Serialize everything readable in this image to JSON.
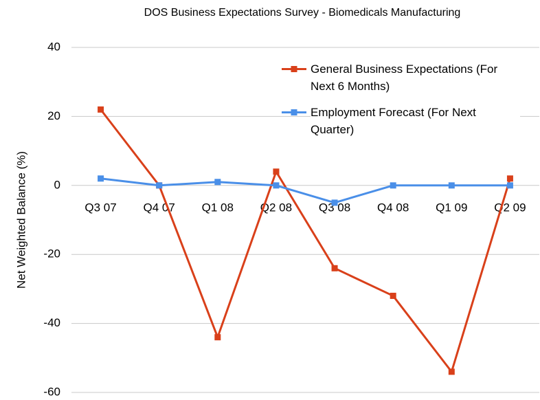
{
  "chart_data": {
    "type": "line",
    "title": "DOS Business Expectations Survey - Biomedicals Manufacturing",
    "y_label": "Net Weighted Balance (%)",
    "categories": [
      "Q3 07",
      "Q4 07",
      "Q1 08",
      "Q2 08",
      "Q3 08",
      "Q4 08",
      "Q1 09",
      "Q2 09"
    ],
    "series": [
      {
        "name": "General Business Expectations (For Next 6 Months)",
        "color": "#d9401a",
        "values": [
          22,
          0,
          -44,
          4,
          -24,
          -32,
          -54,
          2
        ]
      },
      {
        "name": "Employment Forecast (For Next Quarter)",
        "color": "#4a8fe8",
        "values": [
          2,
          0,
          1,
          0,
          -5,
          0,
          0,
          0
        ]
      }
    ],
    "ylim": [
      -60,
      40
    ],
    "yticks": [
      -60,
      -40,
      -20,
      0,
      20,
      40
    ],
    "grid": true,
    "legend": "top-right"
  }
}
